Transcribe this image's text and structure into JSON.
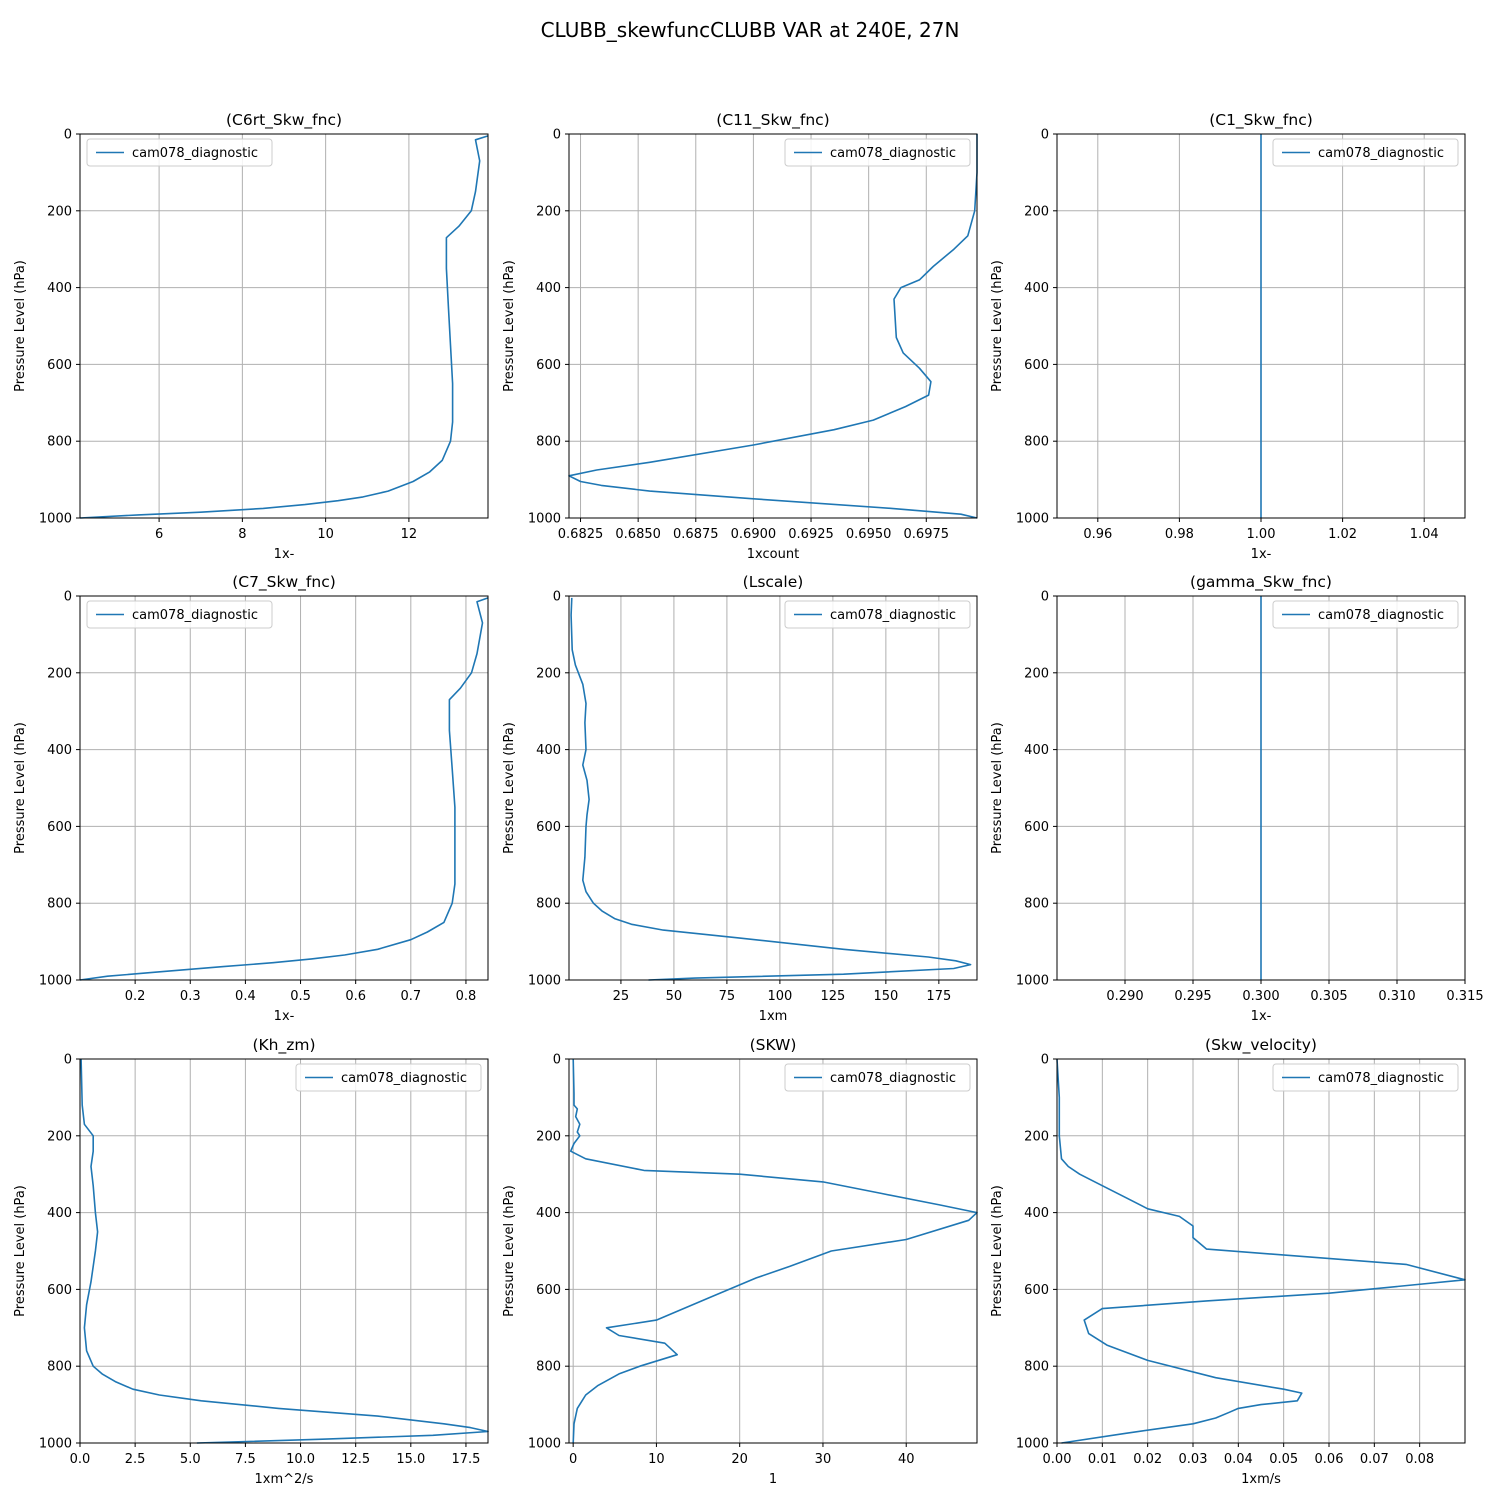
{
  "figure": {
    "suptitle": "CLUBB_skewfuncCLUBB VAR at 240E, 27N",
    "line_color": "#1f77b4",
    "grid_color": "#b0b0b0"
  },
  "chart_data": [
    {
      "type": "line",
      "title": "(C6rt_Skw_fnc)",
      "xlabel": "1x-",
      "ylabel": "Pressure Level (hPa)",
      "xlim": [
        4.1,
        13.9
      ],
      "ylim": [
        1000,
        0
      ],
      "xticks": [
        6,
        8,
        10,
        12
      ],
      "xtick_labels": [
        "6",
        "8",
        "10",
        "12"
      ],
      "yticks": [
        0,
        200,
        400,
        600,
        800,
        1000
      ],
      "grid": true,
      "legend": "upper-left",
      "series": [
        {
          "name": "cam078_diagnostic",
          "x": [
            13.9,
            13.6,
            13.7,
            13.6,
            13.5,
            13.2,
            12.9,
            12.9,
            12.95,
            13.0,
            13.05,
            13.05,
            13.0,
            12.8,
            12.5,
            12.1,
            11.5,
            10.9,
            10.3,
            9.5,
            8.5,
            7.0,
            5.5,
            4.1
          ],
          "y": [
            5,
            15,
            70,
            150,
            200,
            240,
            270,
            350,
            450,
            550,
            650,
            750,
            800,
            850,
            880,
            905,
            930,
            945,
            955,
            965,
            975,
            985,
            992,
            1000
          ]
        }
      ]
    },
    {
      "type": "line",
      "title": "(C11_Skw_fnc)",
      "xlabel": "1xcount",
      "ylabel": "Pressure Level (hPa)",
      "xlim": [
        0.682,
        0.6997
      ],
      "ylim": [
        1000,
        0
      ],
      "xticks": [
        0.6825,
        0.685,
        0.6875,
        0.69,
        0.6925,
        0.695,
        0.6975
      ],
      "xtick_labels": [
        "0.6825",
        "0.6850",
        "0.6875",
        "0.6900",
        "0.6925",
        "0.6950",
        "0.6975"
      ],
      "yticks": [
        0,
        200,
        400,
        600,
        800,
        1000
      ],
      "grid": true,
      "legend": "upper-right",
      "series": [
        {
          "name": "cam078_diagnostic",
          "x": [
            0.6997,
            0.6997,
            0.6996,
            0.6993,
            0.6987,
            0.6978,
            0.6972,
            0.6964,
            0.6961,
            0.6962,
            0.6965,
            0.6972,
            0.6977,
            0.6976,
            0.6966,
            0.6952,
            0.6935,
            0.69,
            0.6855,
            0.6832,
            0.682,
            0.6825,
            0.6834,
            0.6855,
            0.69,
            0.696,
            0.699,
            0.6997
          ],
          "y": [
            0,
            100,
            200,
            265,
            300,
            345,
            380,
            400,
            430,
            530,
            570,
            610,
            645,
            680,
            710,
            745,
            770,
            810,
            855,
            875,
            890,
            905,
            915,
            930,
            950,
            975,
            990,
            1000
          ]
        }
      ]
    },
    {
      "type": "line",
      "title": "(C1_Skw_fnc)",
      "xlabel": "1x-",
      "ylabel": "Pressure Level (hPa)",
      "xlim": [
        0.95,
        1.05
      ],
      "ylim": [
        1000,
        0
      ],
      "xticks": [
        0.96,
        0.98,
        1.0,
        1.02,
        1.04
      ],
      "xtick_labels": [
        "0.96",
        "0.98",
        "1.00",
        "1.02",
        "1.04"
      ],
      "yticks": [
        0,
        200,
        400,
        600,
        800,
        1000
      ],
      "grid": true,
      "legend": "upper-right",
      "series": [
        {
          "name": "cam078_diagnostic",
          "x": [
            1.0,
            1.0
          ],
          "y": [
            0,
            1000
          ]
        }
      ]
    },
    {
      "type": "line",
      "title": "(C7_Skw_fnc)",
      "xlabel": "1x-",
      "ylabel": "Pressure Level (hPa)",
      "xlim": [
        0.1,
        0.84
      ],
      "ylim": [
        1000,
        0
      ],
      "xticks": [
        0.2,
        0.3,
        0.4,
        0.5,
        0.6,
        0.7,
        0.8
      ],
      "xtick_labels": [
        "0.2",
        "0.3",
        "0.4",
        "0.5",
        "0.6",
        "0.7",
        "0.8"
      ],
      "yticks": [
        0,
        200,
        400,
        600,
        800,
        1000
      ],
      "grid": true,
      "legend": "upper-left",
      "series": [
        {
          "name": "cam078_diagnostic",
          "x": [
            0.84,
            0.82,
            0.83,
            0.82,
            0.81,
            0.79,
            0.77,
            0.77,
            0.775,
            0.78,
            0.78,
            0.78,
            0.775,
            0.76,
            0.73,
            0.7,
            0.64,
            0.58,
            0.52,
            0.45,
            0.36,
            0.25,
            0.15,
            0.1
          ],
          "y": [
            5,
            15,
            70,
            150,
            200,
            240,
            270,
            350,
            450,
            550,
            650,
            750,
            800,
            850,
            875,
            895,
            920,
            935,
            945,
            955,
            965,
            978,
            990,
            1000
          ]
        }
      ]
    },
    {
      "type": "line",
      "title": "(Lscale)",
      "xlabel": "1xm",
      "ylabel": "Pressure Level (hPa)",
      "xlim": [
        0.5,
        193
      ],
      "ylim": [
        1000,
        0
      ],
      "xticks": [
        25,
        50,
        75,
        100,
        125,
        150,
        175
      ],
      "xtick_labels": [
        "25",
        "50",
        "75",
        "100",
        "125",
        "150",
        "175"
      ],
      "yticks": [
        0,
        200,
        400,
        600,
        800,
        1000
      ],
      "grid": true,
      "legend": "upper-right",
      "series": [
        {
          "name": "cam078_diagnostic",
          "x": [
            1.8,
            1.5,
            2.0,
            3.5,
            7.0,
            8.5,
            8.0,
            8.5,
            7.0,
            9.0,
            10.0,
            9.0,
            8.5,
            8.0,
            7.0,
            8.5,
            12.0,
            16.0,
            22.0,
            30.0,
            45.0,
            80.0,
            130.0,
            170.0,
            183.0,
            190.0,
            182.0,
            130.0,
            60.0,
            38.0
          ],
          "y": [
            5,
            50,
            140,
            180,
            230,
            280,
            330,
            400,
            440,
            480,
            530,
            570,
            600,
            680,
            740,
            770,
            800,
            820,
            840,
            855,
            870,
            890,
            920,
            940,
            950,
            960,
            970,
            985,
            995,
            1000
          ]
        }
      ]
    },
    {
      "type": "line",
      "title": "(gamma_Skw_fnc)",
      "xlabel": "1x-",
      "ylabel": "Pressure Level (hPa)",
      "xlim": [
        0.285,
        0.315
      ],
      "ylim": [
        1000,
        0
      ],
      "xticks": [
        0.29,
        0.295,
        0.3,
        0.305,
        0.31,
        0.315
      ],
      "xtick_labels": [
        "0.290",
        "0.295",
        "0.300",
        "0.305",
        "0.310",
        "0.315"
      ],
      "yticks": [
        0,
        200,
        400,
        600,
        800,
        1000
      ],
      "grid": true,
      "legend": "upper-right",
      "series": [
        {
          "name": "cam078_diagnostic",
          "x": [
            0.3,
            0.3
          ],
          "y": [
            0,
            1000
          ]
        }
      ]
    },
    {
      "type": "line",
      "title": "(Kh_zm)",
      "xlabel": "1xm^2/s",
      "ylabel": "Pressure Level (hPa)",
      "xlim": [
        0,
        18.5
      ],
      "ylim": [
        1000,
        0
      ],
      "xticks": [
        0,
        2.5,
        5,
        7.5,
        10,
        12.5,
        15,
        17.5
      ],
      "xtick_labels": [
        "0.0",
        "2.5",
        "5.0",
        "7.5",
        "10.0",
        "12.5",
        "15.0",
        "17.5"
      ],
      "yticks": [
        0,
        200,
        400,
        600,
        800,
        1000
      ],
      "grid": true,
      "legend": "upper-right",
      "series": [
        {
          "name": "cam078_diagnostic",
          "x": [
            0.05,
            0.1,
            0.2,
            0.6,
            0.6,
            0.5,
            0.6,
            0.7,
            0.8,
            0.7,
            0.5,
            0.3,
            0.2,
            0.3,
            0.6,
            1.0,
            1.6,
            2.4,
            3.6,
            5.5,
            9.0,
            13.5,
            16.5,
            17.7,
            18.5,
            16.0,
            11.0,
            5.3
          ],
          "y": [
            0,
            120,
            170,
            200,
            240,
            280,
            330,
            400,
            450,
            500,
            580,
            640,
            700,
            760,
            800,
            820,
            840,
            860,
            875,
            890,
            910,
            930,
            950,
            960,
            970,
            980,
            990,
            1000
          ]
        }
      ]
    },
    {
      "type": "line",
      "title": "(SKW)",
      "xlabel": "1",
      "ylabel": "Pressure Level (hPa)",
      "xlim": [
        -0.5,
        48.5
      ],
      "ylim": [
        1000,
        0
      ],
      "xticks": [
        0,
        10,
        20,
        30,
        40
      ],
      "xtick_labels": [
        "0",
        "10",
        "20",
        "30",
        "40"
      ],
      "yticks": [
        0,
        200,
        400,
        600,
        800,
        1000
      ],
      "grid": true,
      "legend": "upper-right",
      "series": [
        {
          "name": "cam078_diagnostic",
          "x": [
            0,
            0.1,
            0.1,
            0.5,
            0.3,
            0.8,
            0.5,
            0.8,
            0.1,
            -0.3,
            1.5,
            8.5,
            20.0,
            30.0,
            37.0,
            44.0,
            48.5,
            47.5,
            40.0,
            31.0,
            26.0,
            22.0,
            16.5,
            10.0,
            4.0,
            5.5,
            11.0,
            12.5,
            8.0,
            5.5,
            3.0,
            1.5,
            0.5,
            0.1,
            0
          ],
          "y": [
            0,
            90,
            120,
            130,
            150,
            170,
            190,
            200,
            220,
            240,
            260,
            290,
            300,
            320,
            350,
            380,
            400,
            420,
            470,
            500,
            540,
            570,
            620,
            680,
            700,
            720,
            740,
            770,
            800,
            820,
            850,
            875,
            910,
            950,
            1000
          ]
        }
      ]
    },
    {
      "type": "line",
      "title": "(Skw_velocity)",
      "xlabel": "1xm/s",
      "ylabel": "Pressure Level (hPa)",
      "xlim": [
        0,
        0.09
      ],
      "ylim": [
        1000,
        0
      ],
      "xticks": [
        0,
        0.01,
        0.02,
        0.03,
        0.04,
        0.05,
        0.06,
        0.07,
        0.08
      ],
      "xtick_labels": [
        "0.00",
        "0.01",
        "0.02",
        "0.03",
        "0.04",
        "0.05",
        "0.06",
        "0.07",
        "0.08"
      ],
      "yticks": [
        0,
        200,
        400,
        600,
        800,
        1000
      ],
      "grid": true,
      "legend": "upper-right",
      "series": [
        {
          "name": "cam078_diagnostic",
          "x": [
            0,
            0.0005,
            0.0005,
            0.001,
            0.0025,
            0.005,
            0.01,
            0.015,
            0.02,
            0.027,
            0.03,
            0.03,
            0.033,
            0.077,
            0.09,
            0.06,
            0.033,
            0.01,
            0.006,
            0.007,
            0.011,
            0.02,
            0.035,
            0.05,
            0.054,
            0.053,
            0.045,
            0.04,
            0.038,
            0.035,
            0.03,
            0.015,
            0.001
          ],
          "y": [
            0,
            100,
            200,
            260,
            280,
            300,
            330,
            360,
            390,
            410,
            435,
            465,
            495,
            535,
            575,
            610,
            630,
            650,
            680,
            715,
            745,
            785,
            830,
            860,
            870,
            890,
            900,
            910,
            920,
            935,
            950,
            975,
            1000
          ]
        }
      ]
    }
  ]
}
